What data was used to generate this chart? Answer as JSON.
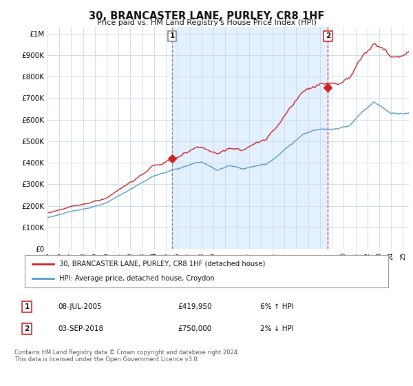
{
  "title": "30, BRANCASTER LANE, PURLEY, CR8 1HF",
  "subtitle": "Price paid vs. HM Land Registry's House Price Index (HPI)",
  "ytick_values": [
    0,
    100000,
    200000,
    300000,
    400000,
    500000,
    600000,
    700000,
    800000,
    900000,
    1000000
  ],
  "ylim": [
    0,
    1030000
  ],
  "xlim_start": 1995.0,
  "xlim_end": 2025.5,
  "hpi_color": "#5599cc",
  "price_color": "#cc2222",
  "sale1_date": 2005.52,
  "sale1_price": 419950,
  "sale2_date": 2018.67,
  "sale2_price": 750000,
  "legend_line1": "30, BRANCASTER LANE, PURLEY, CR8 1HF (detached house)",
  "legend_line2": "HPI: Average price, detached house, Croydon",
  "table_row1": [
    "1",
    "08-JUL-2005",
    "£419,950",
    "6% ↑ HPI"
  ],
  "table_row2": [
    "2",
    "03-SEP-2018",
    "£750,000",
    "2% ↓ HPI"
  ],
  "footnote": "Contains HM Land Registry data © Crown copyright and database right 2024.\nThis data is licensed under the Open Government Licence v3.0.",
  "background_color": "#ffffff",
  "grid_color": "#ccddee",
  "shade_color": "#ddeeff"
}
